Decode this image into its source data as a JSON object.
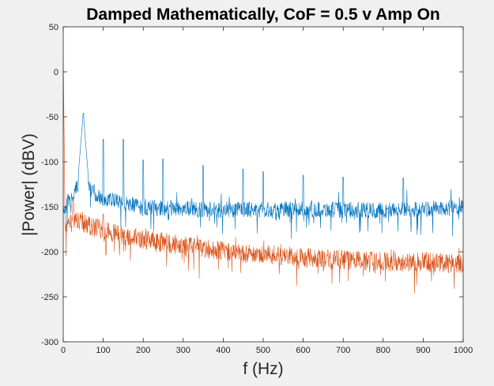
{
  "chart_data": {
    "type": "line",
    "title": "Damped Mathematically, CoF = 0.5 v Amp On",
    "xlabel": "f (Hz)",
    "ylabel": "|Power| (dBV)",
    "xlim": [
      0,
      1000
    ],
    "ylim": [
      -300,
      50
    ],
    "x_ticks": [
      0,
      100,
      200,
      300,
      400,
      500,
      600,
      700,
      800,
      900,
      1000
    ],
    "y_ticks": [
      -300,
      -250,
      -200,
      -150,
      -100,
      -50,
      0,
      50
    ],
    "grid": false,
    "legend": "none",
    "series": [
      {
        "color": "#0072bd",
        "baseline_envelope": [
          [
            0,
            -152
          ],
          [
            20,
            -138
          ],
          [
            40,
            -122
          ],
          [
            48,
            -95
          ],
          [
            50,
            -46
          ],
          [
            52,
            -95
          ],
          [
            60,
            -125
          ],
          [
            80,
            -135
          ],
          [
            100,
            -140
          ],
          [
            150,
            -145
          ],
          [
            200,
            -150
          ],
          [
            400,
            -152
          ],
          [
            600,
            -152
          ],
          [
            800,
            -153
          ],
          [
            1000,
            -150
          ]
        ],
        "peaks": [
          [
            50,
            -46
          ],
          [
            100,
            -75
          ],
          [
            150,
            -75
          ],
          [
            200,
            -98
          ],
          [
            250,
            -97
          ],
          [
            350,
            -104
          ],
          [
            450,
            -108
          ],
          [
            500,
            -111
          ],
          [
            600,
            -115
          ],
          [
            700,
            -117
          ],
          [
            850,
            -118
          ]
        ]
      },
      {
        "color": "#d95319",
        "baseline_envelope": [
          [
            0,
            15
          ],
          [
            2,
            -60
          ],
          [
            5,
            -180
          ],
          [
            10,
            -170
          ],
          [
            30,
            -163
          ],
          [
            50,
            -168
          ],
          [
            100,
            -175
          ],
          [
            200,
            -185
          ],
          [
            300,
            -192
          ],
          [
            400,
            -198
          ],
          [
            500,
            -202
          ],
          [
            600,
            -205
          ],
          [
            700,
            -208
          ],
          [
            800,
            -210
          ],
          [
            900,
            -210
          ],
          [
            1000,
            -212
          ]
        ],
        "peaks": [
          [
            0,
            15
          ],
          [
            25,
            -140
          ],
          [
            100,
            -158
          ],
          [
            355,
            -250
          ],
          [
            460,
            -238
          ],
          [
            560,
            -234
          ],
          [
            720,
            -231
          ]
        ]
      }
    ]
  }
}
